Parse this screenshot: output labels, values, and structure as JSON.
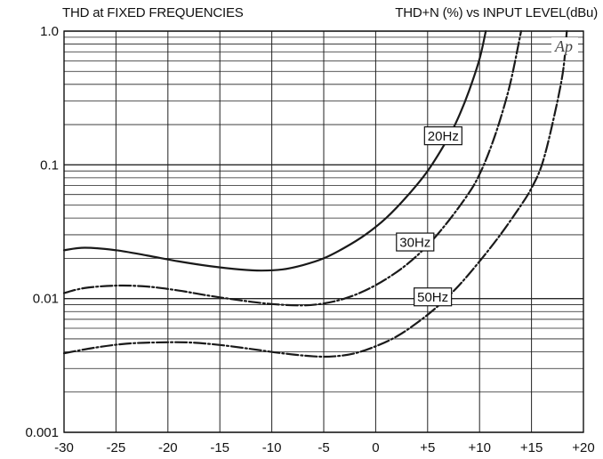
{
  "header": {
    "left": "THD at FIXED FREQUENCIES",
    "right": "THD+N (%) vs INPUT LEVEL(dBu)"
  },
  "watermark": "Ap",
  "chart_data": {
    "type": "line",
    "title": "THD at FIXED FREQUENCIES",
    "subtitle": "THD+N (%) vs INPUT LEVEL(dBu)",
    "xlabel": "",
    "ylabel": "",
    "xlim": [
      -30,
      20
    ],
    "ylim": [
      0.001,
      1.0
    ],
    "yscale": "log",
    "grid": true,
    "x_ticks": [
      "-30",
      "-25",
      "-20",
      "-15",
      "-10",
      "-5",
      "0",
      "+5",
      "+10",
      "+15",
      "+20"
    ],
    "y_ticks": [
      "0.001",
      "0.01",
      "0.1",
      "1.0"
    ],
    "series": [
      {
        "name": "20Hz",
        "style": "solid",
        "x": [
          -30,
          -28,
          -25,
          -22,
          -19,
          -16,
          -13,
          -11,
          -9,
          -7,
          -5,
          -3,
          -1,
          1,
          3,
          5,
          7,
          8,
          9,
          10,
          10.6
        ],
        "y": [
          0.023,
          0.024,
          0.023,
          0.021,
          0.019,
          0.0175,
          0.0165,
          0.0162,
          0.0165,
          0.0178,
          0.02,
          0.024,
          0.03,
          0.04,
          0.058,
          0.09,
          0.16,
          0.23,
          0.36,
          0.62,
          1.0
        ]
      },
      {
        "name": "30Hz",
        "style": "dashdot",
        "x": [
          -30,
          -28,
          -25,
          -22,
          -19,
          -16,
          -13,
          -10,
          -7,
          -5,
          -3,
          -1,
          1,
          3,
          5,
          7,
          9,
          10,
          11,
          12,
          13,
          14
        ],
        "y": [
          0.011,
          0.012,
          0.0125,
          0.0123,
          0.0115,
          0.0105,
          0.0097,
          0.0091,
          0.0089,
          0.0092,
          0.01,
          0.0115,
          0.014,
          0.018,
          0.025,
          0.038,
          0.062,
          0.085,
          0.13,
          0.22,
          0.42,
          1.0
        ]
      },
      {
        "name": "50Hz",
        "style": "dashdot",
        "x": [
          -30,
          -27,
          -24,
          -21,
          -18,
          -15,
          -12,
          -9,
          -6,
          -4,
          -2,
          0,
          2,
          4,
          6,
          8,
          10,
          12,
          14,
          15,
          16,
          17,
          18,
          18.4
        ],
        "y": [
          0.0039,
          0.0043,
          0.0046,
          0.0047,
          0.0047,
          0.0045,
          0.0042,
          0.0039,
          0.0037,
          0.0037,
          0.0039,
          0.0044,
          0.0052,
          0.0066,
          0.0088,
          0.0125,
          0.019,
          0.03,
          0.05,
          0.067,
          0.1,
          0.2,
          0.48,
          1.0
        ]
      }
    ],
    "annotations": [
      {
        "text": "20Hz",
        "series": "20Hz",
        "x": 6.5,
        "y": 0.165
      },
      {
        "text": "30Hz",
        "series": "30Hz",
        "x": 3.8,
        "y": 0.0265
      },
      {
        "text": "50Hz",
        "series": "50Hz",
        "x": 5.5,
        "y": 0.0103
      }
    ]
  }
}
